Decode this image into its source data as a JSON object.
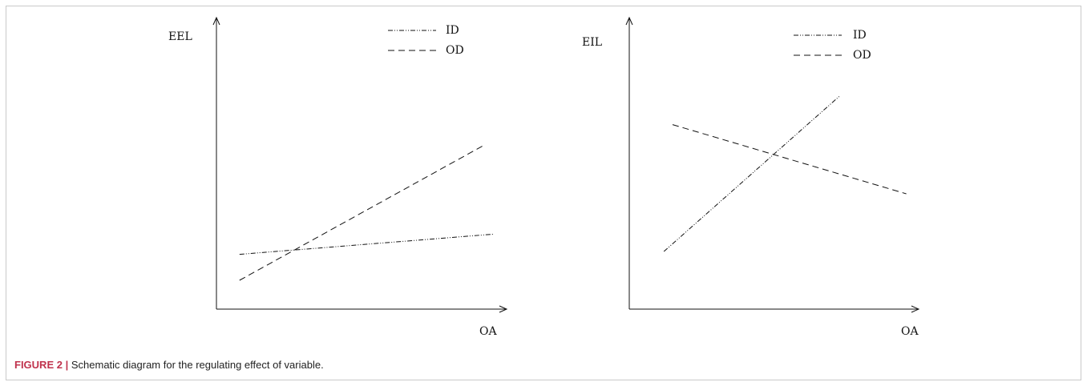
{
  "chart_data": [
    {
      "type": "line",
      "xlabel": "OA",
      "ylabel": "EEL",
      "xlim": [
        0,
        10
      ],
      "ylim": [
        0,
        10
      ],
      "series": [
        {
          "name": "ID",
          "style": "dash-dot",
          "x": [
            0.8,
            9.6
          ],
          "y": [
            1.9,
            2.6
          ]
        },
        {
          "name": "OD",
          "style": "dashed",
          "x": [
            0.8,
            9.3
          ],
          "y": [
            1.0,
            5.7
          ]
        }
      ],
      "legend": "top-right"
    },
    {
      "type": "line",
      "xlabel": "OA",
      "ylabel": "EIL",
      "xlim": [
        0,
        10
      ],
      "ylim": [
        0,
        10
      ],
      "series": [
        {
          "name": "ID",
          "style": "dash-dot",
          "x": [
            1.2,
            7.3
          ],
          "y": [
            2.0,
            7.4
          ]
        },
        {
          "name": "OD",
          "style": "dashed",
          "x": [
            1.5,
            9.6
          ],
          "y": [
            6.4,
            4.0
          ]
        }
      ],
      "legend": "top-right"
    }
  ],
  "caption": {
    "label": "FIGURE 2",
    "separator": "|",
    "text": "Schematic diagram for the regulating effect of variable."
  },
  "colors": {
    "line": "#111111",
    "caption_label": "#c0334d"
  }
}
